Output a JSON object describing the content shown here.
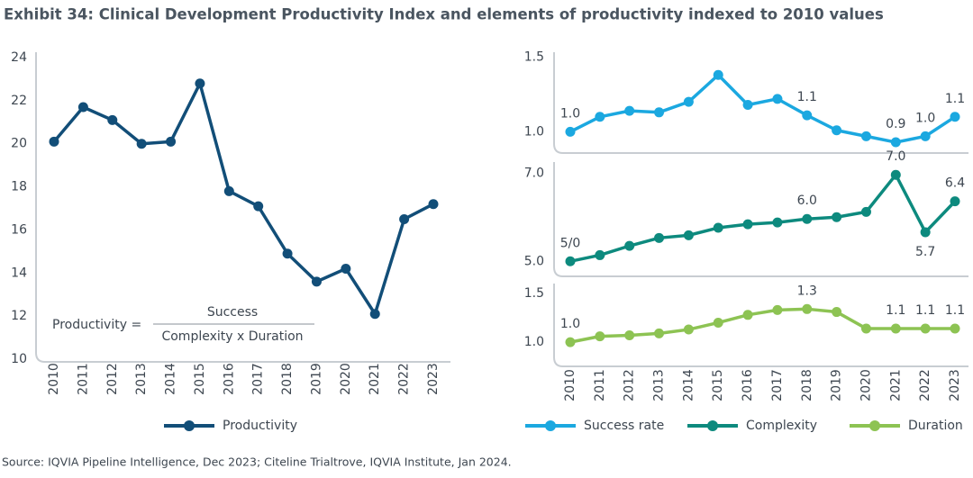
{
  "title": "Exhibit 34: Clinical Development Productivity Index and elements of productivity indexed to 2010 values",
  "source": "Source: IQVIA Pipeline Intelligence, Dec 2023; Citeline Trialtrove, IQVIA Institute, Jan 2024.",
  "chart_data": [
    {
      "type": "line",
      "categories": [
        "2010",
        "2011",
        "2012",
        "2013",
        "2014",
        "2015",
        "2016",
        "2017",
        "2018",
        "2019",
        "2020",
        "2021",
        "2022",
        "2023"
      ],
      "series": [
        {
          "name": "Productivity",
          "color": "#124e78",
          "values": [
            20.1,
            21.7,
            21.1,
            20.0,
            20.1,
            22.8,
            17.8,
            17.1,
            14.9,
            13.6,
            14.2,
            12.1,
            16.5,
            17.2
          ]
        }
      ],
      "ylim": [
        10,
        24
      ],
      "yticks": [
        10,
        12,
        14,
        16,
        18,
        20,
        22,
        24
      ],
      "formula": {
        "lhs": "Productivity =",
        "numerator": "Success",
        "denominator": "Complexity x Duration"
      }
    },
    {
      "type": "line",
      "series": [
        {
          "name": "Success rate",
          "color": "#1ba8e0",
          "values": [
            1.0,
            1.1,
            1.14,
            1.13,
            1.2,
            1.38,
            1.18,
            1.22,
            1.11,
            1.01,
            0.97,
            0.93,
            0.97,
            1.1
          ],
          "value_labels": [
            "1.0",
            null,
            null,
            null,
            null,
            null,
            null,
            null,
            "1.1",
            null,
            null,
            "0.9",
            "1.0",
            "1.1"
          ]
        }
      ],
      "ylim": [
        0.87,
        1.52
      ],
      "yticks": [
        {
          "value": 1,
          "label": "1.0"
        },
        1.5
      ]
    },
    {
      "type": "line",
      "series": [
        {
          "name": "Complexity",
          "color": "#0d8a7e",
          "values": [
            5.0,
            5.14,
            5.35,
            5.53,
            5.59,
            5.76,
            5.84,
            5.88,
            5.96,
            6.0,
            6.12,
            6.96,
            5.66,
            6.36
          ],
          "value_labels": [
            "5/0",
            null,
            null,
            null,
            null,
            null,
            null,
            null,
            "6.0",
            null,
            null,
            "7.0",
            "5.7",
            "6.4"
          ]
        }
      ],
      "ylim": [
        4.7,
        7.25
      ],
      "yticks": [
        {
          "value": 5,
          "label": "5.0"
        },
        {
          "value": 7,
          "label": "7.0"
        }
      ]
    },
    {
      "type": "line",
      "categories": [
        "2010",
        "2011",
        "2012",
        "2013",
        "2014",
        "2015",
        "2016",
        "2017",
        "2018",
        "2019",
        "2020",
        "2021",
        "2022",
        "2023"
      ],
      "series": [
        {
          "name": "Duration",
          "color": "#8dc353",
          "values": [
            1.0,
            1.06,
            1.07,
            1.09,
            1.13,
            1.2,
            1.28,
            1.33,
            1.34,
            1.31,
            1.14,
            1.14,
            1.14,
            1.14
          ],
          "value_labels": [
            "1.0",
            null,
            null,
            null,
            null,
            null,
            null,
            null,
            "1.3",
            null,
            null,
            "1.1",
            "1.1",
            "1.1"
          ]
        }
      ],
      "ylim": [
        0.77,
        1.62
      ],
      "yticks": [
        {
          "value": 1,
          "label": "1.0"
        },
        1.5
      ]
    }
  ]
}
